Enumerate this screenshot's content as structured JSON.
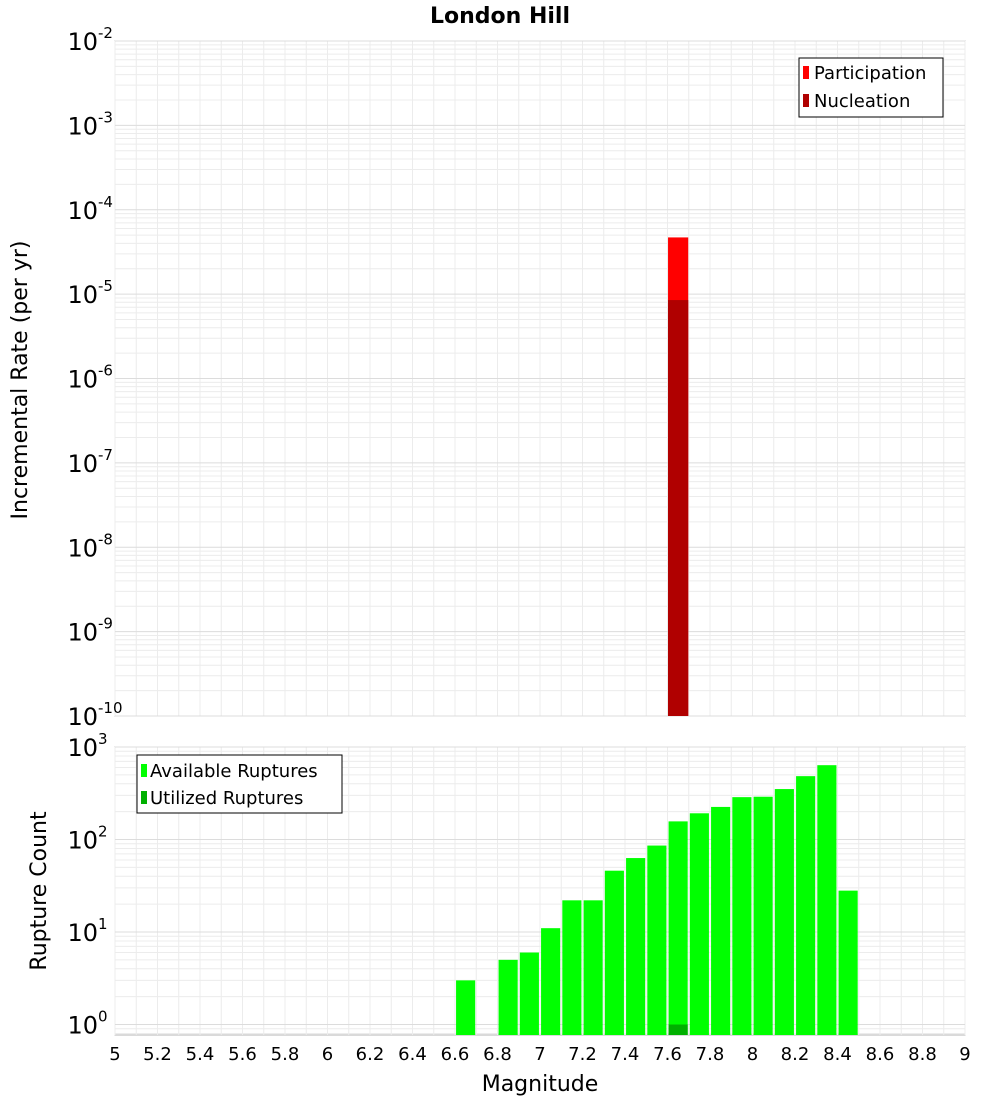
{
  "chart_data": [
    {
      "type": "bar",
      "title": "London Hill",
      "xlabel": "",
      "ylabel": "Incremental Rate (per yr)",
      "yscale": "log",
      "xlim": [
        5,
        9
      ],
      "ylim": [
        1e-10,
        0.01
      ],
      "y_tick_labels": [
        {
          "base": "10",
          "exp": "-10"
        },
        {
          "base": "10",
          "exp": "-9"
        },
        {
          "base": "10",
          "exp": "-8"
        },
        {
          "base": "10",
          "exp": "-7"
        },
        {
          "base": "10",
          "exp": "-6"
        },
        {
          "base": "10",
          "exp": "-5"
        },
        {
          "base": "10",
          "exp": "-4"
        },
        {
          "base": "10",
          "exp": "-3"
        },
        {
          "base": "10",
          "exp": "-2"
        }
      ],
      "grid": true,
      "legend_position": "top-right",
      "series": [
        {
          "name": "Participation",
          "color": "#ff0000",
          "x": [
            7.65
          ],
          "values": [
            4.7e-05
          ]
        },
        {
          "name": "Nucleation",
          "color": "#b00000",
          "x": [
            7.65
          ],
          "values": [
            8.5e-06
          ]
        }
      ]
    },
    {
      "type": "bar",
      "title": "",
      "xlabel": "Magnitude",
      "ylabel": "Rupture Count",
      "yscale": "log",
      "xlim": [
        5,
        9
      ],
      "ylim": [
        0.77,
        1000
      ],
      "x_tick_labels": [
        "5",
        "5.2",
        "5.4",
        "5.6",
        "5.8",
        "6",
        "6.2",
        "6.4",
        "6.6",
        "6.8",
        "7",
        "7.2",
        "7.4",
        "7.6",
        "7.8",
        "8",
        "8.2",
        "8.4",
        "8.6",
        "8.8",
        "9"
      ],
      "y_tick_labels": [
        {
          "base": "10",
          "exp": "0"
        },
        {
          "base": "10",
          "exp": "1"
        },
        {
          "base": "10",
          "exp": "2"
        },
        {
          "base": "10",
          "exp": "3"
        }
      ],
      "grid": true,
      "legend_position": "top-left",
      "series": [
        {
          "name": "Available Ruptures",
          "color": "#00ff00",
          "x": [
            6.65,
            6.85,
            6.95,
            7.05,
            7.15,
            7.25,
            7.35,
            7.45,
            7.55,
            7.65,
            7.75,
            7.85,
            7.95,
            8.05,
            8.15,
            8.25,
            8.35,
            8.45
          ],
          "values": [
            3,
            5,
            6,
            11,
            22,
            22,
            46,
            63,
            86,
            157,
            192,
            225,
            287,
            290,
            351,
            484,
            636,
            28
          ]
        },
        {
          "name": "Utilized Ruptures",
          "color": "#00b000",
          "x": [
            7.65
          ],
          "values": [
            1
          ]
        }
      ]
    }
  ]
}
